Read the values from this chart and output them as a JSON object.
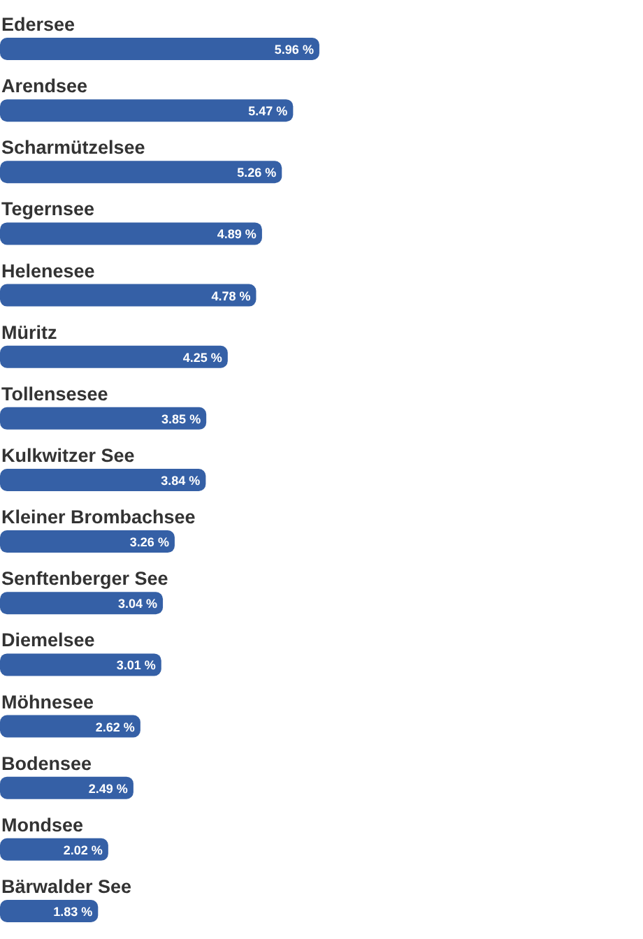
{
  "chart_data": {
    "type": "bar",
    "orientation": "horizontal",
    "categories": [
      "Edersee",
      "Arendsee",
      "Scharmützelsee",
      "Tegernsee",
      "Helenesee",
      "Müritz",
      "Tollensesee",
      "Kulkwitzer See",
      "Kleiner Brombachsee",
      "Senftenberger See",
      "Diemelsee",
      "Möhnesee",
      "Bodensee",
      "Mondsee",
      "Bärwalder See"
    ],
    "values": [
      5.96,
      5.47,
      5.26,
      4.89,
      4.78,
      4.25,
      3.85,
      3.84,
      3.26,
      3.04,
      3.01,
      2.62,
      2.49,
      2.02,
      1.83
    ],
    "value_labels": [
      "5.96 %",
      "5.47 %",
      "5.26 %",
      "4.89 %",
      "4.78 %",
      "4.25 %",
      "3.85 %",
      "3.84 %",
      "3.26 %",
      "3.04 %",
      "3.01 %",
      "2.62 %",
      "2.49 %",
      "2.02 %",
      "1.83 %"
    ],
    "color": "#3560a6",
    "xlim": [
      0,
      12
    ],
    "tick_labels": false
  }
}
